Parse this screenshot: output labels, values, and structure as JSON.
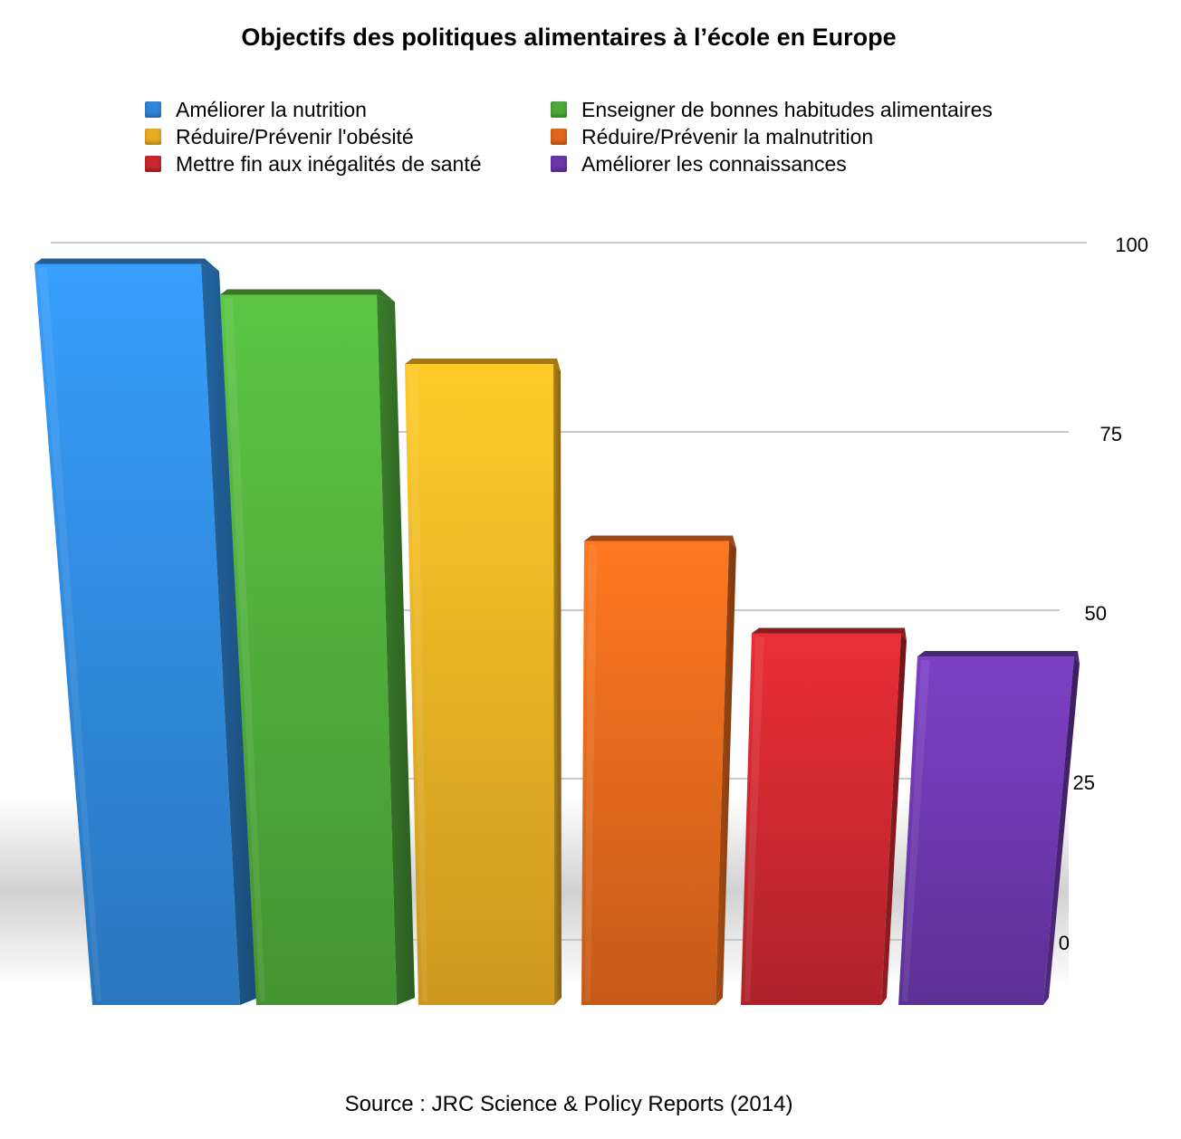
{
  "title": "Objectifs des politiques alimentaires à l’école en Europe",
  "source": "Source : JRC Science & Policy Reports (2014)",
  "legend": [
    {
      "label": "Améliorer la nutrition",
      "color": "#2f86d6"
    },
    {
      "label": "Enseigner de bonnes habitudes alimentaires",
      "color": "#4ea83a"
    },
    {
      "label": "Réduire/Prévenir l'obésité",
      "color": "#e9ac23"
    },
    {
      "label": "Réduire/Prévenir la malnutrition",
      "color": "#e0661c"
    },
    {
      "label": "Mettre fin aux inégalités de santé",
      "color": "#c7272f"
    },
    {
      "label": "Améliorer les connaissances",
      "color": "#6a36a8"
    }
  ],
  "chart_data": {
    "type": "bar",
    "categories": [
      "Améliorer la nutrition",
      "Enseigner de bonnes habitudes alimentaires",
      "Réduire/Prévenir l'obésité",
      "Réduire/Prévenir la malnutrition",
      "Mettre fin aux inégalités de santé",
      "Améliorer les connaissances"
    ],
    "values": [
      97,
      93,
      84,
      61,
      49,
      46
    ],
    "colors": [
      "#2f86d6",
      "#4ea83a",
      "#e9ac23",
      "#e0661c",
      "#c7272f",
      "#6a36a8"
    ],
    "ylim": [
      0,
      100
    ],
    "yticks": [
      "0",
      "25",
      "50",
      "75",
      "100"
    ],
    "grid": true,
    "legend_position": "top",
    "style": "3d"
  }
}
